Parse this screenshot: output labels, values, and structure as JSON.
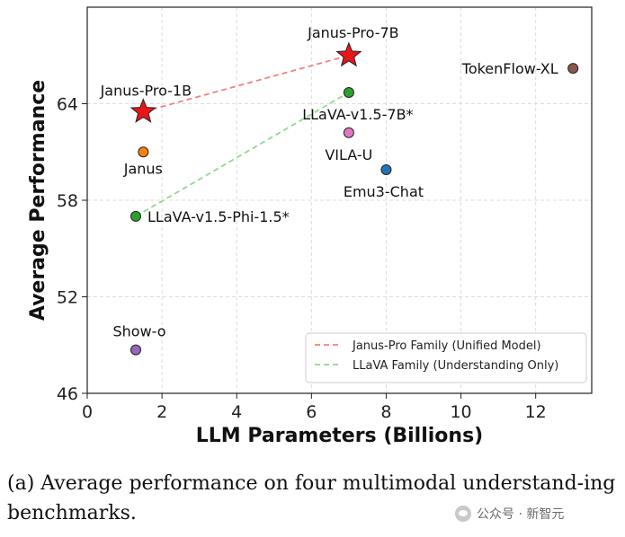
{
  "chart_data": {
    "type": "scatter",
    "xlabel": "LLM Parameters (Billions)",
    "ylabel": "Average Performance",
    "xlim": [
      0,
      13.5
    ],
    "ylim": [
      46,
      70
    ],
    "xticks": [
      0,
      2,
      4,
      6,
      8,
      10,
      12
    ],
    "yticks": [
      46,
      52,
      58,
      64
    ],
    "grid": true,
    "legend_position": "bottom-right",
    "points": [
      {
        "label": "Janus-Pro-7B",
        "x": 7.0,
        "y": 67.0,
        "marker": "star",
        "color": "#e8151b"
      },
      {
        "label": "Janus-Pro-1B",
        "x": 1.5,
        "y": 63.5,
        "marker": "star",
        "color": "#e8151b"
      },
      {
        "label": "TokenFlow-XL",
        "x": 13.0,
        "y": 66.2,
        "marker": "circle",
        "color": "#8c564b"
      },
      {
        "label": "LLaVA-v1.5-7B*",
        "x": 7.0,
        "y": 64.7,
        "marker": "circle",
        "color": "#2ca02c"
      },
      {
        "label": "VILA-U",
        "x": 7.0,
        "y": 62.2,
        "marker": "circle",
        "color": "#e377c2"
      },
      {
        "label": "Janus",
        "x": 1.5,
        "y": 61.0,
        "marker": "circle",
        "color": "#ff7f0e"
      },
      {
        "label": "Emu3-Chat",
        "x": 8.0,
        "y": 59.9,
        "marker": "circle",
        "color": "#1f77b4"
      },
      {
        "label": "LLaVA-v1.5-Phi-1.5*",
        "x": 1.3,
        "y": 57.0,
        "marker": "circle",
        "color": "#2ca02c"
      },
      {
        "label": "Show-o",
        "x": 1.3,
        "y": 48.7,
        "marker": "circle",
        "color": "#9467bd"
      }
    ],
    "series": [
      {
        "name": "Janus-Pro Family (Unified Model)",
        "color": "#f08080",
        "style": "dashed",
        "x": [
          1.5,
          7.0
        ],
        "y": [
          63.5,
          67.0
        ]
      },
      {
        "name": "LLaVA Family (Understanding Only)",
        "color": "#90d890",
        "style": "dashed",
        "x": [
          1.3,
          7.0
        ],
        "y": [
          57.0,
          64.7
        ]
      }
    ]
  },
  "caption": "(a)  Average performance on four multimodal understand-ing benchmarks.",
  "watermark": "公众号 · 新智元"
}
